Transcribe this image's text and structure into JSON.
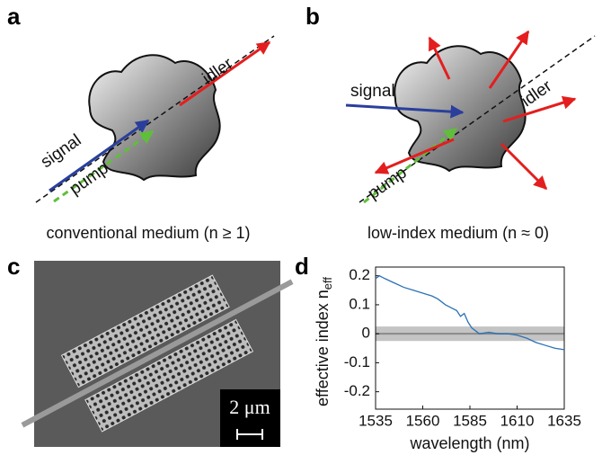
{
  "panels": {
    "a": {
      "label": "a",
      "caption": "conventional medium (n ≥ 1)",
      "signal": "signal",
      "pump": "pump",
      "idler": "idler"
    },
    "b": {
      "label": "b",
      "caption": "low-index medium (n ≈ 0)",
      "signal": "signal",
      "pump": "pump",
      "idler": "idler"
    },
    "c": {
      "label": "c",
      "scale_bar": "2 μm"
    },
    "d": {
      "label": "d"
    }
  },
  "chart_data": {
    "type": "line",
    "xlabel": "wavelength (nm)",
    "ylabel": {
      "text": "effective index n",
      "subscript": "eff"
    },
    "x": [
      1535,
      1537,
      1540,
      1545,
      1550,
      1555,
      1560,
      1565,
      1568,
      1570,
      1572,
      1575,
      1578,
      1580,
      1582,
      1584,
      1586,
      1588,
      1590,
      1595,
      1600,
      1605,
      1610,
      1615,
      1620,
      1625,
      1630,
      1635
    ],
    "series": [
      {
        "color": "#2a72b5",
        "values": [
          0.19,
          0.2,
          0.19,
          0.175,
          0.16,
          0.15,
          0.14,
          0.13,
          0.12,
          0.11,
          0.1,
          0.09,
          0.08,
          0.06,
          0.07,
          0.04,
          0.02,
          0.01,
          0.0,
          0.005,
          0.0,
          0.0,
          -0.005,
          -0.015,
          -0.03,
          -0.04,
          -0.05,
          -0.055
        ]
      }
    ],
    "band": {
      "range": [
        -0.025,
        0.025
      ],
      "color": "#c4c4c4"
    },
    "xlim": [
      1535,
      1635
    ],
    "xticks": [
      1535,
      1560,
      1585,
      1610,
      1635
    ],
    "ylim": [
      -0.26,
      0.23
    ],
    "yticks": [
      0.2,
      0.1,
      0,
      -0.1,
      -0.2
    ]
  }
}
